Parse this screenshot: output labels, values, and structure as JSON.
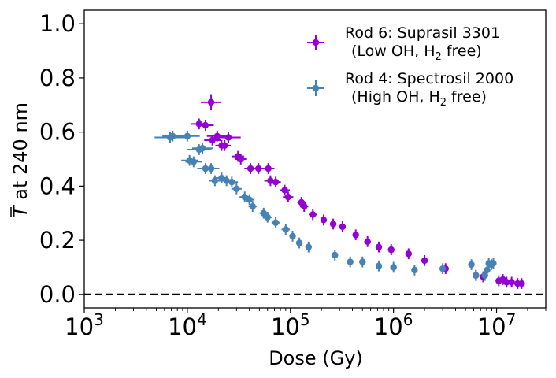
{
  "chart_data": {
    "type": "scatter",
    "xscale": "log",
    "xlim": [
      1000,
      30000000
    ],
    "ylim": [
      -0.05,
      1.05
    ],
    "xlabel": "Dose (Gy)",
    "ylabel": "T at 240 nm",
    "ylabel_symbol": "T",
    "ylabel_rest": " at 240 nm",
    "x_ticks": [
      {
        "value": 1000,
        "base": "10",
        "exp": "3"
      },
      {
        "value": 10000,
        "base": "10",
        "exp": "4"
      },
      {
        "value": 100000,
        "base": "10",
        "exp": "5"
      },
      {
        "value": 1000000,
        "base": "10",
        "exp": "6"
      },
      {
        "value": 10000000,
        "base": "10",
        "exp": "7"
      }
    ],
    "y_ticks": [
      {
        "value": 0.0,
        "label": "0.0"
      },
      {
        "value": 0.2,
        "label": "0.2"
      },
      {
        "value": 0.4,
        "label": "0.4"
      },
      {
        "value": 0.6,
        "label": "0.6"
      },
      {
        "value": 0.8,
        "label": "0.8"
      },
      {
        "value": 1.0,
        "label": "1.0"
      }
    ],
    "reference_line": {
      "y": 0.0,
      "style": "dashed",
      "color": "#000000"
    },
    "legend_placement": "top-right",
    "series": [
      {
        "legend_line1": "Rod 6: Suprasil 3301",
        "legend_line2_pre": "(Low OH, H",
        "legend_line2_sub": "2",
        "legend_line2_post": " free)",
        "color": "#9400d3",
        "points": [
          {
            "x": 13000,
            "y": 0.63,
            "xerr": 0.08,
            "yerr": 0.02
          },
          {
            "x": 15000,
            "y": 0.625,
            "xerr": 0.08,
            "yerr": 0.02
          },
          {
            "x": 17000,
            "y": 0.71,
            "xerr": 0.1,
            "yerr": 0.03
          },
          {
            "x": 17500,
            "y": 0.57,
            "xerr": 0.08,
            "yerr": 0.02
          },
          {
            "x": 19500,
            "y": 0.585,
            "xerr": 0.1,
            "yerr": 0.02
          },
          {
            "x": 21500,
            "y": 0.55,
            "xerr": 0.06,
            "yerr": 0.02
          },
          {
            "x": 23000,
            "y": 0.55,
            "xerr": 0.06,
            "yerr": 0.02
          },
          {
            "x": 25000,
            "y": 0.58,
            "xerr": 0.12,
            "yerr": 0.02
          },
          {
            "x": 31000,
            "y": 0.51,
            "xerr": 0.06,
            "yerr": 0.02
          },
          {
            "x": 33000,
            "y": 0.5,
            "xerr": 0.06,
            "yerr": 0.02
          },
          {
            "x": 41000,
            "y": 0.465,
            "xerr": 0.06,
            "yerr": 0.02
          },
          {
            "x": 49000,
            "y": 0.465,
            "xerr": 0.06,
            "yerr": 0.02
          },
          {
            "x": 61000,
            "y": 0.465,
            "xerr": 0.06,
            "yerr": 0.02
          },
          {
            "x": 64000,
            "y": 0.42,
            "xerr": 0.06,
            "yerr": 0.02
          },
          {
            "x": 72000,
            "y": 0.415,
            "xerr": 0.05,
            "yerr": 0.02
          },
          {
            "x": 88000,
            "y": 0.385,
            "xerr": 0.05,
            "yerr": 0.02
          },
          {
            "x": 95000,
            "y": 0.36,
            "xerr": 0.05,
            "yerr": 0.02
          },
          {
            "x": 128000,
            "y": 0.34,
            "xerr": 0.04,
            "yerr": 0.02
          },
          {
            "x": 136000,
            "y": 0.325,
            "xerr": 0.04,
            "yerr": 0.02
          },
          {
            "x": 165000,
            "y": 0.295,
            "xerr": 0.04,
            "yerr": 0.02
          },
          {
            "x": 210000,
            "y": 0.275,
            "xerr": 0.03,
            "yerr": 0.02
          },
          {
            "x": 260000,
            "y": 0.26,
            "xerr": 0.03,
            "yerr": 0.02
          },
          {
            "x": 320000,
            "y": 0.25,
            "xerr": 0.03,
            "yerr": 0.02
          },
          {
            "x": 430000,
            "y": 0.22,
            "xerr": 0.03,
            "yerr": 0.02
          },
          {
            "x": 560000,
            "y": 0.195,
            "xerr": 0.03,
            "yerr": 0.02
          },
          {
            "x": 720000,
            "y": 0.175,
            "xerr": 0.03,
            "yerr": 0.02
          },
          {
            "x": 950000,
            "y": 0.165,
            "xerr": 0.03,
            "yerr": 0.02
          },
          {
            "x": 1400000,
            "y": 0.15,
            "xerr": 0.03,
            "yerr": 0.02
          },
          {
            "x": 2000000,
            "y": 0.125,
            "xerr": 0.03,
            "yerr": 0.02
          },
          {
            "x": 3200000,
            "y": 0.095,
            "xerr": 0.03,
            "yerr": 0.02
          },
          {
            "x": 6300000,
            "y": 0.07,
            "xerr": 0.03,
            "yerr": 0.02
          },
          {
            "x": 7400000,
            "y": 0.065,
            "xerr": 0.03,
            "yerr": 0.02
          },
          {
            "x": 10500000,
            "y": 0.05,
            "xerr": 0.03,
            "yerr": 0.02
          },
          {
            "x": 11500000,
            "y": 0.055,
            "xerr": 0.03,
            "yerr": 0.02
          },
          {
            "x": 12500000,
            "y": 0.045,
            "xerr": 0.03,
            "yerr": 0.02
          },
          {
            "x": 14000000,
            "y": 0.045,
            "xerr": 0.03,
            "yerr": 0.02
          },
          {
            "x": 16000000,
            "y": 0.04,
            "xerr": 0.03,
            "yerr": 0.02
          },
          {
            "x": 17500000,
            "y": 0.04,
            "xerr": 0.03,
            "yerr": 0.02
          }
        ]
      },
      {
        "legend_line1": "Rod 4: Spectrosil 2000",
        "legend_line2_pre": "(High OH, H",
        "legend_line2_sub": "2",
        "legend_line2_post": " free)",
        "color": "#4682b4",
        "points": [
          {
            "x": 6800,
            "y": 0.58,
            "xerr": 0.15,
            "yerr": 0.02
          },
          {
            "x": 7200,
            "y": 0.585,
            "xerr": 0.1,
            "yerr": 0.02
          },
          {
            "x": 10000,
            "y": 0.585,
            "xerr": 0.12,
            "yerr": 0.02
          },
          {
            "x": 10500,
            "y": 0.495,
            "xerr": 0.08,
            "yerr": 0.02
          },
          {
            "x": 11500,
            "y": 0.49,
            "xerr": 0.08,
            "yerr": 0.02
          },
          {
            "x": 13000,
            "y": 0.535,
            "xerr": 0.12,
            "yerr": 0.02
          },
          {
            "x": 14000,
            "y": 0.54,
            "xerr": 0.1,
            "yerr": 0.02
          },
          {
            "x": 15000,
            "y": 0.465,
            "xerr": 0.08,
            "yerr": 0.02
          },
          {
            "x": 17000,
            "y": 0.465,
            "xerr": 0.08,
            "yerr": 0.02
          },
          {
            "x": 18500,
            "y": 0.42,
            "xerr": 0.06,
            "yerr": 0.02
          },
          {
            "x": 21500,
            "y": 0.43,
            "xerr": 0.06,
            "yerr": 0.02
          },
          {
            "x": 24000,
            "y": 0.42,
            "xerr": 0.06,
            "yerr": 0.02
          },
          {
            "x": 27000,
            "y": 0.415,
            "xerr": 0.06,
            "yerr": 0.02
          },
          {
            "x": 30000,
            "y": 0.39,
            "xerr": 0.05,
            "yerr": 0.02
          },
          {
            "x": 36000,
            "y": 0.36,
            "xerr": 0.05,
            "yerr": 0.02
          },
          {
            "x": 40000,
            "y": 0.35,
            "xerr": 0.05,
            "yerr": 0.02
          },
          {
            "x": 43000,
            "y": 0.325,
            "xerr": 0.04,
            "yerr": 0.02
          },
          {
            "x": 55000,
            "y": 0.3,
            "xerr": 0.04,
            "yerr": 0.02
          },
          {
            "x": 60000,
            "y": 0.285,
            "xerr": 0.04,
            "yerr": 0.02
          },
          {
            "x": 72000,
            "y": 0.265,
            "xerr": 0.04,
            "yerr": 0.02
          },
          {
            "x": 90000,
            "y": 0.24,
            "xerr": 0.04,
            "yerr": 0.02
          },
          {
            "x": 105000,
            "y": 0.215,
            "xerr": 0.03,
            "yerr": 0.02
          },
          {
            "x": 122000,
            "y": 0.19,
            "xerr": 0.03,
            "yerr": 0.02
          },
          {
            "x": 150000,
            "y": 0.175,
            "xerr": 0.03,
            "yerr": 0.02
          },
          {
            "x": 270000,
            "y": 0.145,
            "xerr": 0.03,
            "yerr": 0.02
          },
          {
            "x": 380000,
            "y": 0.12,
            "xerr": 0.03,
            "yerr": 0.02
          },
          {
            "x": 500000,
            "y": 0.12,
            "xerr": 0.03,
            "yerr": 0.02
          },
          {
            "x": 720000,
            "y": 0.105,
            "xerr": 0.03,
            "yerr": 0.02
          },
          {
            "x": 1000000,
            "y": 0.1,
            "xerr": 0.03,
            "yerr": 0.02
          },
          {
            "x": 1600000,
            "y": 0.09,
            "xerr": 0.03,
            "yerr": 0.02
          },
          {
            "x": 3000000,
            "y": 0.095,
            "xerr": 0.03,
            "yerr": 0.02
          },
          {
            "x": 5700000,
            "y": 0.11,
            "xerr": 0.03,
            "yerr": 0.02
          },
          {
            "x": 6300000,
            "y": 0.07,
            "xerr": 0.03,
            "yerr": 0.02
          },
          {
            "x": 7700000,
            "y": 0.07,
            "xerr": 0.03,
            "yerr": 0.02
          },
          {
            "x": 8100000,
            "y": 0.09,
            "xerr": 0.03,
            "yerr": 0.02
          },
          {
            "x": 8400000,
            "y": 0.115,
            "xerr": 0.03,
            "yerr": 0.02
          },
          {
            "x": 8900000,
            "y": 0.11,
            "xerr": 0.03,
            "yerr": 0.02
          },
          {
            "x": 9300000,
            "y": 0.115,
            "xerr": 0.03,
            "yerr": 0.02
          }
        ]
      }
    ]
  }
}
